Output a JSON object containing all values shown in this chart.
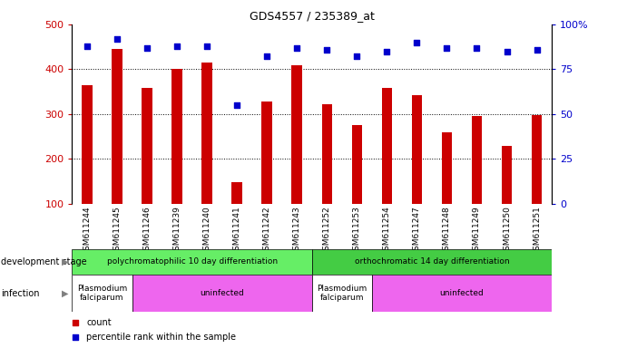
{
  "title": "GDS4557 / 235389_at",
  "samples": [
    "GSM611244",
    "GSM611245",
    "GSM611246",
    "GSM611239",
    "GSM611240",
    "GSM611241",
    "GSM611242",
    "GSM611243",
    "GSM611252",
    "GSM611253",
    "GSM611254",
    "GSM611247",
    "GSM611248",
    "GSM611249",
    "GSM611250",
    "GSM611251"
  ],
  "counts": [
    365,
    445,
    358,
    400,
    415,
    148,
    328,
    408,
    322,
    275,
    358,
    342,
    260,
    295,
    228,
    298
  ],
  "percentile_ranks": [
    88,
    92,
    87,
    88,
    88,
    55,
    82,
    87,
    86,
    82,
    85,
    90,
    87,
    87,
    85,
    86
  ],
  "bar_color": "#cc0000",
  "dot_color": "#0000cc",
  "ylim_left": [
    100,
    500
  ],
  "ylim_right": [
    0,
    100
  ],
  "yticks_left": [
    100,
    200,
    300,
    400,
    500
  ],
  "yticks_right": [
    0,
    25,
    50,
    75,
    100
  ],
  "grid_values": [
    200,
    300,
    400
  ],
  "dev_stage_groups": [
    {
      "label": "polychromatophilic 10 day differentiation",
      "start": 0,
      "end": 8,
      "color": "#66ee66"
    },
    {
      "label": "orthochromatic 14 day differentiation",
      "start": 8,
      "end": 16,
      "color": "#44cc44"
    }
  ],
  "infection_groups": [
    {
      "label": "Plasmodium\nfalciparum",
      "start": 0,
      "end": 2,
      "color": "#ffffff"
    },
    {
      "label": "uninfected",
      "start": 2,
      "end": 8,
      "color": "#ee66ee"
    },
    {
      "label": "Plasmodium\nfalciparum",
      "start": 8,
      "end": 10,
      "color": "#ffffff"
    },
    {
      "label": "uninfected",
      "start": 10,
      "end": 16,
      "color": "#ee66ee"
    }
  ],
  "bar_width": 0.35,
  "fig_width": 6.91,
  "fig_height": 3.84,
  "dpi": 100
}
